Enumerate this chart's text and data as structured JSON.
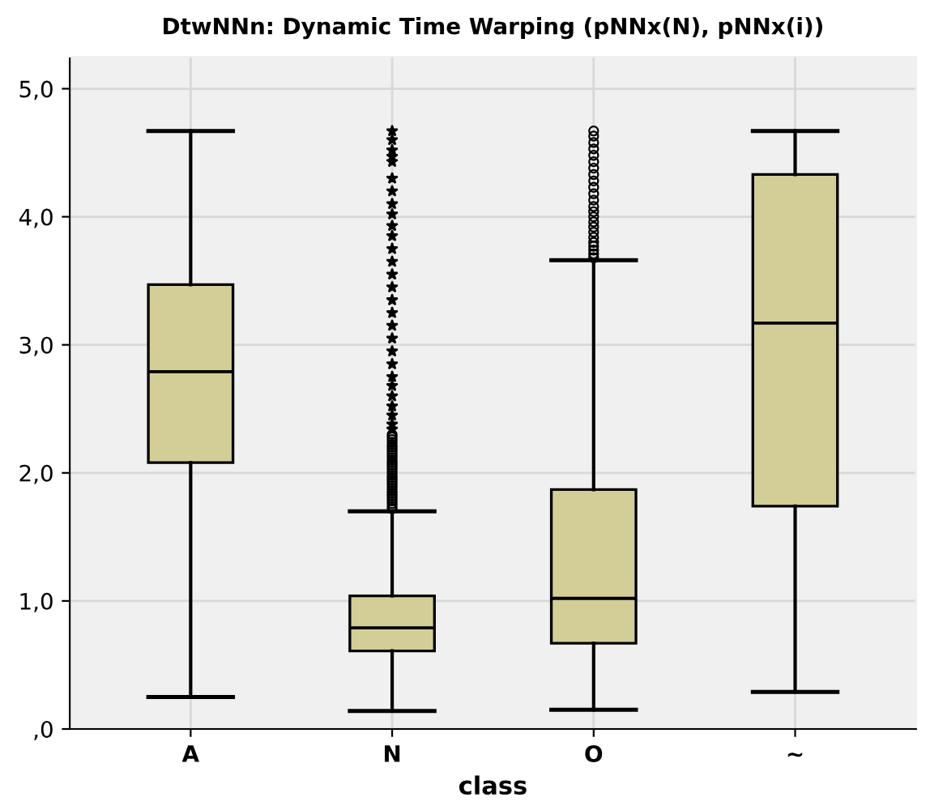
{
  "chart_data": {
    "type": "box",
    "title": "DtwNNn: Dynamic Time Warping (pNNx(N), pNNx(i))",
    "xlabel": "class",
    "categories": [
      "A",
      "N",
      "O",
      "~"
    ],
    "color": "#d3ce97",
    "boxes": [
      {
        "low": 0.25,
        "q1": 2.08,
        "median": 2.79,
        "q3": 3.47,
        "high": 4.67
      },
      {
        "low": 0.14,
        "q1": 0.61,
        "median": 0.79,
        "q3": 1.04,
        "high": 1.7,
        "outliers": [
          1.72,
          1.74,
          1.76,
          1.78,
          1.8,
          1.82,
          1.84,
          1.86,
          1.88,
          1.9,
          1.92,
          1.94,
          1.96,
          1.98,
          2.0,
          2.02,
          2.04,
          2.06,
          2.08,
          2.1,
          2.12,
          2.14,
          2.16,
          2.18,
          2.2,
          2.22,
          2.24,
          2.26,
          2.28,
          2.3,
          2.34,
          2.38,
          2.45,
          2.52,
          2.6,
          2.68,
          2.75,
          2.85,
          2.95,
          3.05,
          3.15,
          3.25,
          3.35,
          3.45,
          3.55,
          3.65,
          3.75,
          3.85,
          3.93,
          4.02,
          4.1,
          4.2,
          4.3,
          4.43,
          4.47,
          4.52,
          4.6,
          4.67
        ]
      },
      {
        "low": 0.15,
        "q1": 0.67,
        "median": 1.02,
        "q3": 1.87,
        "high": 3.66,
        "outliers": [
          3.68,
          3.71,
          3.74,
          3.77,
          3.8,
          3.84,
          3.88,
          3.92,
          3.96,
          4.0,
          4.04,
          4.08,
          4.13,
          4.18,
          4.23,
          4.28,
          4.33,
          4.38,
          4.43,
          4.48,
          4.53,
          4.58,
          4.63,
          4.67
        ]
      },
      {
        "low": 0.29,
        "q1": 1.74,
        "median": 3.17,
        "q3": 4.33,
        "high": 4.67
      }
    ],
    "ylim": [
      0,
      5.25
    ],
    "yticks": [
      {
        "value": 0,
        "label": ",0"
      },
      {
        "value": 1,
        "label": "1,0"
      },
      {
        "value": 2,
        "label": "2,0"
      },
      {
        "value": 3,
        "label": "3,0"
      },
      {
        "value": 4,
        "label": "4,0"
      },
      {
        "value": 5,
        "label": "5,0"
      }
    ],
    "grid": true
  }
}
